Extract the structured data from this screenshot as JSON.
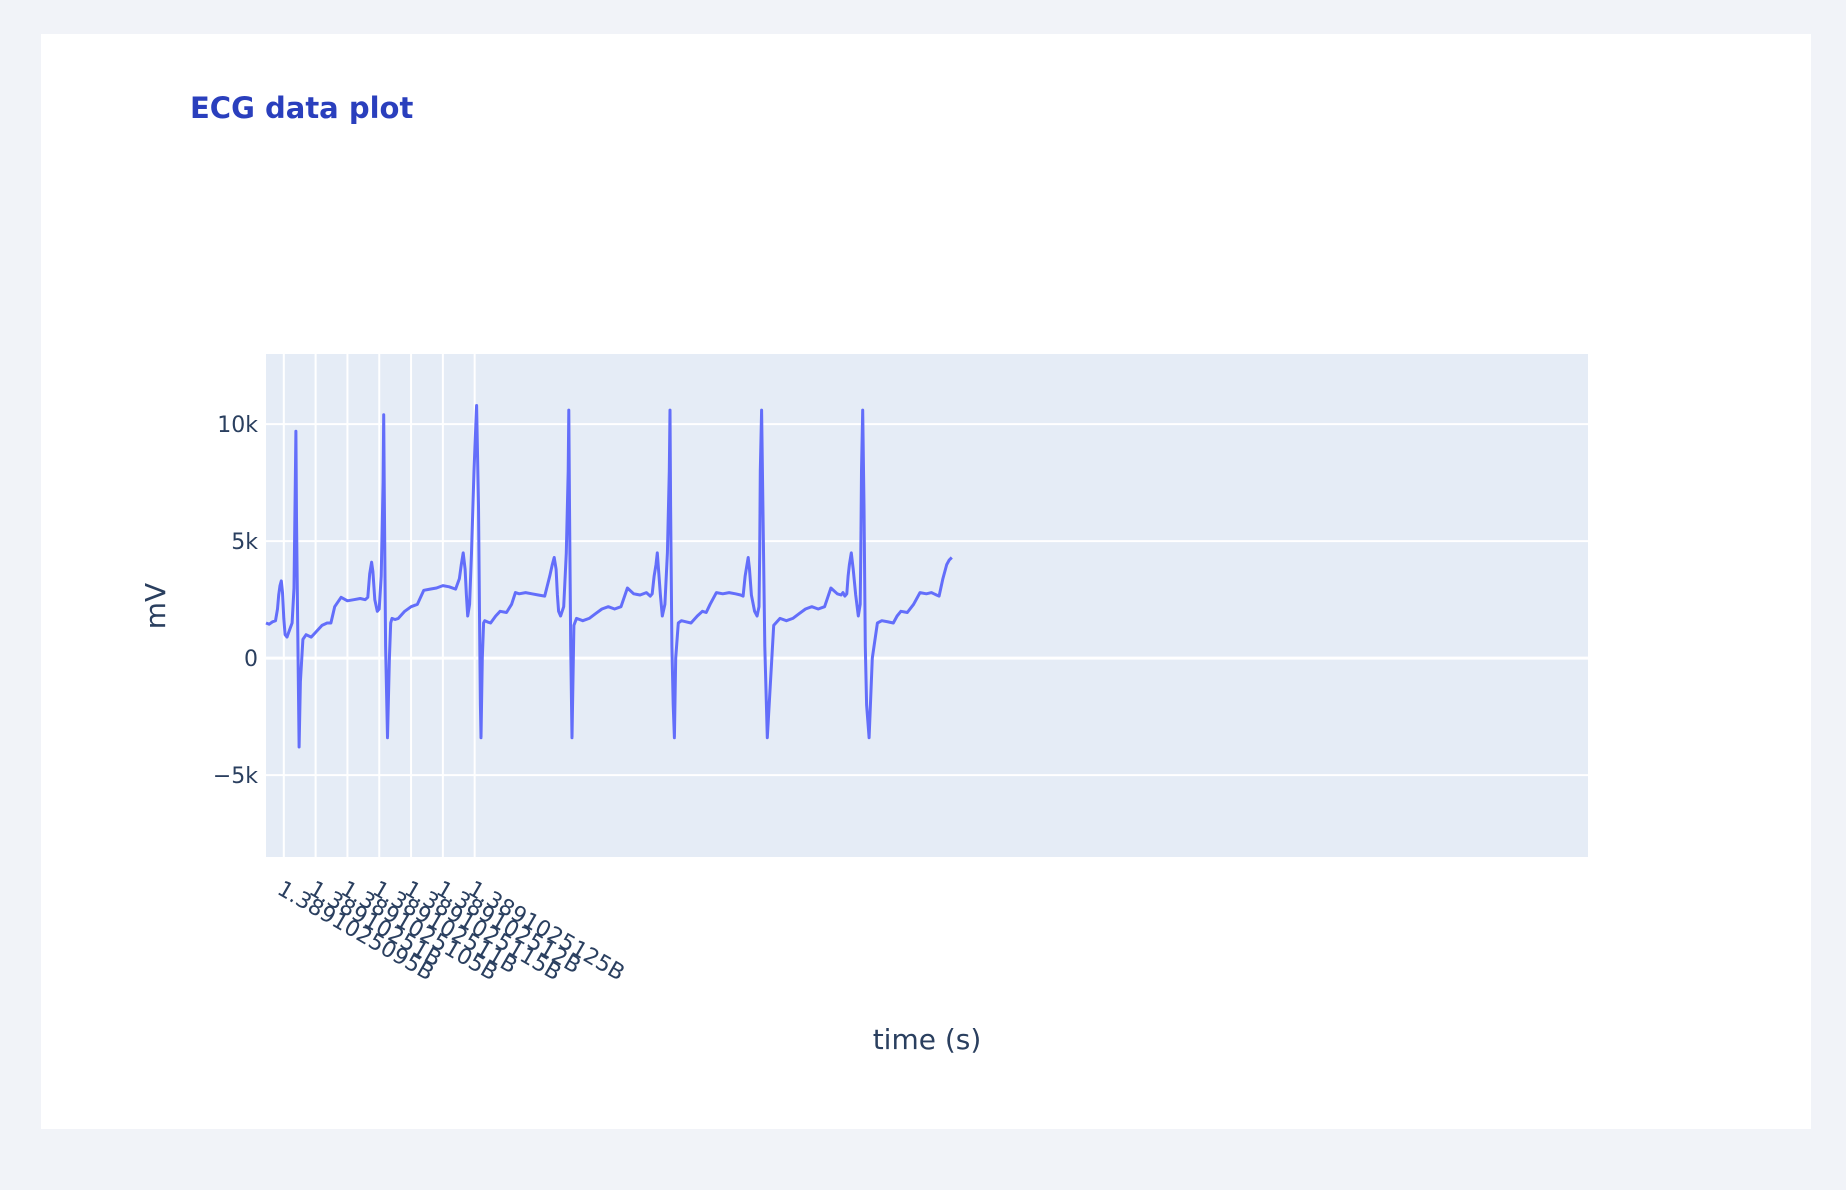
{
  "chart_data": {
    "type": "line",
    "title": "ECG data plot",
    "xlabel": "time (s)",
    "ylabel": "mV",
    "xlim": [
      1.38910250922,
      1.38910253
    ],
    "ylim": [
      -8500,
      13000
    ],
    "grid": true,
    "x_ticks": [
      {
        "value": 1.3891025095,
        "label": "1.3891025095B"
      },
      {
        "value": 1.38910251,
        "label": "1.38910251B"
      },
      {
        "value": 1.3891025105,
        "label": "1.3891025105B"
      },
      {
        "value": 1.389102511,
        "label": "1.389102511B"
      },
      {
        "value": 1.3891025115,
        "label": "1.3891025115B"
      },
      {
        "value": 1.389102512,
        "label": "1.389102512B"
      },
      {
        "value": 1.3891025125,
        "label": "1.3891025125B"
      }
    ],
    "y_ticks": [
      {
        "value": 10000,
        "label": "10k"
      },
      {
        "value": 5000,
        "label": "5k"
      },
      {
        "value": 0,
        "label": "0"
      },
      {
        "value": -5000,
        "label": "−5k"
      }
    ],
    "series": [
      {
        "color": "#636efa",
        "x": [
          1.38910250922,
          1.38910250927,
          1.38910250932,
          1.38910250937,
          1.3891025094,
          1.38910250942,
          1.38910250944,
          1.38910250946,
          1.38910250948,
          1.3891025095,
          1.38910250952,
          1.38910250955,
          1.38910250959,
          1.38910250963,
          1.38910250966,
          1.38910250968,
          1.38910250969,
          1.3891025097,
          1.38910250972,
          1.38910250974,
          1.38910250976,
          1.3891025098,
          1.38910250985,
          1.38910250993,
          1.38910251,
          1.3891025101,
          1.38910251018,
          1.38910251024,
          1.3891025103,
          1.3891025104,
          1.3891025105,
          1.3891025106,
          1.3891025107,
          1.38910251078,
          1.38910251082,
          1.38910251085,
          1.38910251088,
          1.3891025109,
          1.38910251093,
          1.38910251097,
          1.389102511,
          1.38910251103,
          1.38910251106,
          1.38910251107,
          1.38910251108,
          1.3891025111,
          1.38910251113,
          1.38910251116,
          1.38910251118,
          1.3891025112,
          1.38910251125,
          1.3891025113,
          1.3891025114,
          1.3891025115,
          1.3891025116,
          1.3891025117,
          1.3891025118,
          1.3891025119,
          1.389102512,
          1.3891025121,
          1.3891025122,
          1.38910251226,
          1.38910251229,
          1.38910251232,
          1.38910251235,
          1.38910251237,
          1.38910251239,
          1.38910251242,
          1.38910251245,
          1.38910251249,
          1.38910251253,
          1.38910251256,
          1.38910251258,
          1.38910251259,
          1.3891025126,
          1.38910251262,
          1.38910251264,
          1.38910251266,
          1.3891025127,
          1.38910251275,
          1.38910251283,
          1.3891025129,
          1.389102513,
          1.38910251308,
          1.38910251314,
          1.3891025132,
          1.3891025133,
          1.3891025134,
          1.3891025135,
          1.3891025136,
          1.38910251368,
          1.38910251372,
          1.38910251375,
          1.38910251378,
          1.3891025138,
          1.38910251382,
          1.38910251385,
          1.3891025139,
          1.38910251394,
          1.38910251397,
          1.38910251398,
          1.38910251399,
          1.38910251401,
          1.38910251403,
          1.38910251406,
          1.3891025141,
          1.3891025142,
          1.3891025143,
          1.3891025144,
          1.3891025145,
          1.3891025146,
          1.3891025147,
          1.3891025148,
          1.3891025149,
          1.389102515,
          1.3891025151,
          1.3891025152,
          1.38910251526,
          1.38910251529,
          1.38910251532,
          1.38910251535,
          1.38910251537,
          1.38910251539,
          1.38910251542,
          1.38910251545,
          1.38910251549,
          1.38910251553,
          1.38910251556,
          1.38910251557,
          1.38910251558,
          1.3891025156,
          1.38910251562,
          1.38910251564,
          1.38910251566,
          1.3891025157,
          1.38910251575,
          1.38910251583,
          1.3891025159,
          1.389102516,
          1.38910251608,
          1.38910251614,
          1.3891025162,
          1.3891025163,
          1.3891025164,
          1.3891025165,
          1.3891025166,
          1.38910251668,
          1.38910251672,
          1.38910251675,
          1.38910251678,
          1.3891025168,
          1.38910251682,
          1.38910251685,
          1.3891025169,
          1.38910251694,
          1.38910251697,
          1.38910251698,
          1.38910251699,
          1.38910251701,
          1.38910251703,
          1.38910251706,
          1.3891025171,
          1.3891025172,
          1.3891025173,
          1.3891025174,
          1.3891025175,
          1.3891025176,
          1.3891025177,
          1.3891025178,
          1.3891025179,
          1.389102518,
          1.3891025181,
          1.3891025182,
          1.38910251826,
          1.38910251829,
          1.38910251832,
          1.38910251835,
          1.38910251837,
          1.38910251839,
          1.38910251842,
          1.38910251845,
          1.38910251849,
          1.38910251853,
          1.38910251856,
          1.38910251857,
          1.38910251858,
          1.3891025186,
          1.38910251862,
          1.38910251864,
          1.38910251866,
          1.3891025187,
          1.38910251875,
          1.38910251883,
          1.3891025189,
          1.389102519,
          1.38910251908,
          1.38910251914,
          1.3891025192,
          1.3891025193,
          1.3891025194,
          1.3891025195,
          1.3891025196,
          1.38910251968,
          1.38910251972,
          1.38910251976,
          1.3891025198,
          1.38910251986,
          1.38910251992,
          1.38910251996,
          1.38910252
        ],
        "y": [
          1500,
          1450,
          1550,
          1600,
          2100,
          2700,
          3100,
          3300,
          2800,
          1700,
          1000,
          900,
          1200,
          1500,
          3000,
          7500,
          9700,
          6000,
          1000,
          -3800,
          -1000,
          800,
          1000,
          900,
          1100,
          1400,
          1500,
          1500,
          2200,
          2600,
          2450,
          2500,
          2550,
          2500,
          2600,
          3600,
          4100,
          3700,
          2500,
          2000,
          2100,
          3500,
          7500,
          10400,
          7000,
          500,
          -3400,
          0,
          1500,
          1700,
          1650,
          1700,
          2000,
          2200,
          2300,
          2900,
          2950,
          3000,
          3100,
          3050,
          2950,
          3400,
          4000,
          4500,
          3800,
          2700,
          1800,
          2300,
          4500,
          8000,
          10800,
          6500,
          500,
          -2000,
          -3400,
          0,
          1500,
          1600,
          1550,
          1500,
          1800,
          2000,
          1950,
          2300,
          2800,
          2750,
          2800,
          2750,
          2700,
          2650,
          3500,
          4000,
          4300,
          3800,
          2700,
          2000,
          1800,
          2200,
          4500,
          8000,
          10600,
          6500,
          500,
          -3400,
          1400,
          1700,
          1600,
          1700,
          1900,
          2100,
          2200,
          2100,
          2200,
          3000,
          2750,
          2700,
          2800,
          2650,
          2750,
          3500,
          4000,
          4500,
          3800,
          2700,
          1800,
          2300,
          4500,
          8000,
          10600,
          6500,
          500,
          -2000,
          -3400,
          0,
          1500,
          1600,
          1550,
          1500,
          1800,
          2000,
          1950,
          2300,
          2800,
          2750,
          2800,
          2750,
          2700,
          2650,
          3500,
          4000,
          4300,
          3800,
          2700,
          2000,
          1800,
          2200,
          4500,
          8000,
          10600,
          6500,
          500,
          -3400,
          1400,
          1700,
          1600,
          1700,
          1900,
          2100,
          2200,
          2100,
          2200,
          3000,
          2750,
          2700,
          2800,
          2650,
          2750,
          3500,
          4000,
          4500,
          3800,
          2700,
          1800,
          2300,
          4500,
          8000,
          10600,
          6500,
          500,
          -2000,
          -3400,
          0,
          1500,
          1600,
          1550,
          1500,
          1800,
          2000,
          1950,
          2300,
          2800,
          2750,
          2800,
          2750,
          2700,
          2650,
          3400,
          4000,
          4200,
          4300
        ]
      }
    ]
  }
}
